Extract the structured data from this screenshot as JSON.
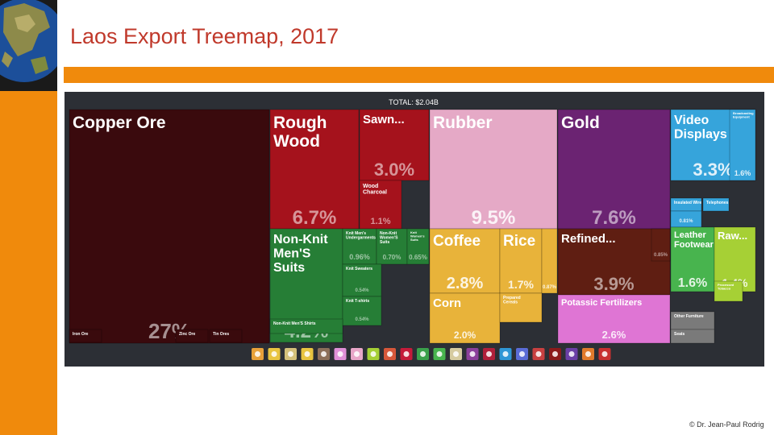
{
  "slide": {
    "title": "Laos Export Treemap, 2017",
    "footer": "© Dr. Jean-Paul Rodrig"
  },
  "colors": {
    "accent": "#f08a0c",
    "title": "#c0392b",
    "chart_bg": "#2c2f35"
  },
  "legend_icons": [
    {
      "name": "animal-products-icon",
      "color": "#e8a13a"
    },
    {
      "name": "vegetable-products-icon",
      "color": "#e8c440"
    },
    {
      "name": "animal-vegetable-oils-icon",
      "color": "#d4c07a"
    },
    {
      "name": "foodstuffs-icon",
      "color": "#e8c440"
    },
    {
      "name": "minerals-icon",
      "color": "#8c6f5a"
    },
    {
      "name": "chemical-products-icon",
      "color": "#e090d8"
    },
    {
      "name": "plastics-rubbers-icon",
      "color": "#e8a6c8"
    },
    {
      "name": "animal-hides-icon",
      "color": "#a6d035"
    },
    {
      "name": "wood-products-icon",
      "color": "#d6573a"
    },
    {
      "name": "paper-goods-icon",
      "color": "#c51b3a"
    },
    {
      "name": "textiles-icon",
      "color": "#3aa14b"
    },
    {
      "name": "footwear-icon",
      "color": "#48b44e"
    },
    {
      "name": "stone-glass-icon",
      "color": "#d6cba0"
    },
    {
      "name": "precious-metals-icon",
      "color": "#8b3f9b"
    },
    {
      "name": "metals-icon",
      "color": "#b0203a"
    },
    {
      "name": "machines-icon",
      "color": "#2f97d6"
    },
    {
      "name": "transportation-icon",
      "color": "#5a6cd6"
    },
    {
      "name": "instruments-icon",
      "color": "#c84040"
    },
    {
      "name": "weapons-icon",
      "color": "#8b1a1a"
    },
    {
      "name": "miscellaneous-icon",
      "color": "#6b3fa6"
    },
    {
      "name": "arts-antiques-icon",
      "color": "#e07a2c"
    },
    {
      "name": "unspecified-icon",
      "color": "#c83030"
    }
  ],
  "chart_data": {
    "type": "treemap",
    "total_label": "TOTAL: $2.04B",
    "items": [
      {
        "label": "Copper Ore",
        "share": "27%",
        "color": "#3a0a0d"
      },
      {
        "label": "Iron Ore",
        "share": "",
        "color": "#3a0a0d"
      },
      {
        "label": "Zinc Ore",
        "share": "",
        "color": "#3a0a0d"
      },
      {
        "label": "Tin Ores",
        "share": "",
        "color": "#3a0a0d"
      },
      {
        "label": "Rough Wood",
        "share": "6.7%",
        "color": "#a5121c"
      },
      {
        "label": "Sawn...",
        "share": "3.0%",
        "color": "#a5121c"
      },
      {
        "label": "Wood Charcoal",
        "share": "1.1%",
        "color": "#a5121c"
      },
      {
        "label": "Rubber",
        "share": "9.5%",
        "color": "#e5a9c6"
      },
      {
        "label": "Gold",
        "share": "7.6%",
        "color": "#6b2372"
      },
      {
        "label": "Video Displays",
        "share": "3.3%",
        "color": "#36a4db"
      },
      {
        "label": "Broadcasting Equipment",
        "share": "1.6%",
        "color": "#36a4db"
      },
      {
        "label": "Insulated Wire",
        "share": "",
        "color": "#36a4db"
      },
      {
        "label": "Telephones",
        "share": "",
        "color": "#36a4db"
      },
      {
        "label": "",
        "share": "0.81%",
        "color": "#36a4db"
      },
      {
        "label": "Non-Knit Men'S Suits",
        "share": "4.2%",
        "color": "#267e36"
      },
      {
        "label": "Knit Men's Undergarments",
        "share": "0.96%",
        "color": "#267e36"
      },
      {
        "label": "Non-Knit Women'S Suits",
        "share": "0.70%",
        "color": "#267e36"
      },
      {
        "label": "Knit Women's Suits",
        "share": "0.65%",
        "color": "#267e36"
      },
      {
        "label": "Knit Sweaters",
        "share": "0.54%",
        "color": "#267e36"
      },
      {
        "label": "Knit T-shirts",
        "share": "0.54%",
        "color": "#267e36"
      },
      {
        "label": "Non-Knit Men'S Shirts",
        "share": "",
        "color": "#267e36"
      },
      {
        "label": "Coffee",
        "share": "2.8%",
        "color": "#e8b33a"
      },
      {
        "label": "Rice",
        "share": "1.7%",
        "color": "#e8b33a"
      },
      {
        "label": "",
        "share": "0.87%",
        "color": "#e8b33a"
      },
      {
        "label": "Corn",
        "share": "2.0%",
        "color": "#e8b33a"
      },
      {
        "label": "Prepared Cereals",
        "share": "",
        "color": "#e8b33a"
      },
      {
        "label": "Refined...",
        "share": "3.9%",
        "color": "#5f1e12"
      },
      {
        "label": "",
        "share": "0.85%",
        "color": "#5f1e12"
      },
      {
        "label": "Potassic Fertilizers",
        "share": "2.6%",
        "color": "#df75d4"
      },
      {
        "label": "Leather Footwear",
        "share": "1.6%",
        "color": "#48b44e"
      },
      {
        "label": "Raw...",
        "share": "1.4%",
        "color": "#a6d035"
      },
      {
        "label": "Processed Tobacco",
        "share": "",
        "color": "#a6d035"
      },
      {
        "label": "Other Furniture",
        "share": "",
        "color": "#7a7a7a"
      },
      {
        "label": "Seats",
        "share": "",
        "color": "#7a7a7a"
      }
    ]
  }
}
